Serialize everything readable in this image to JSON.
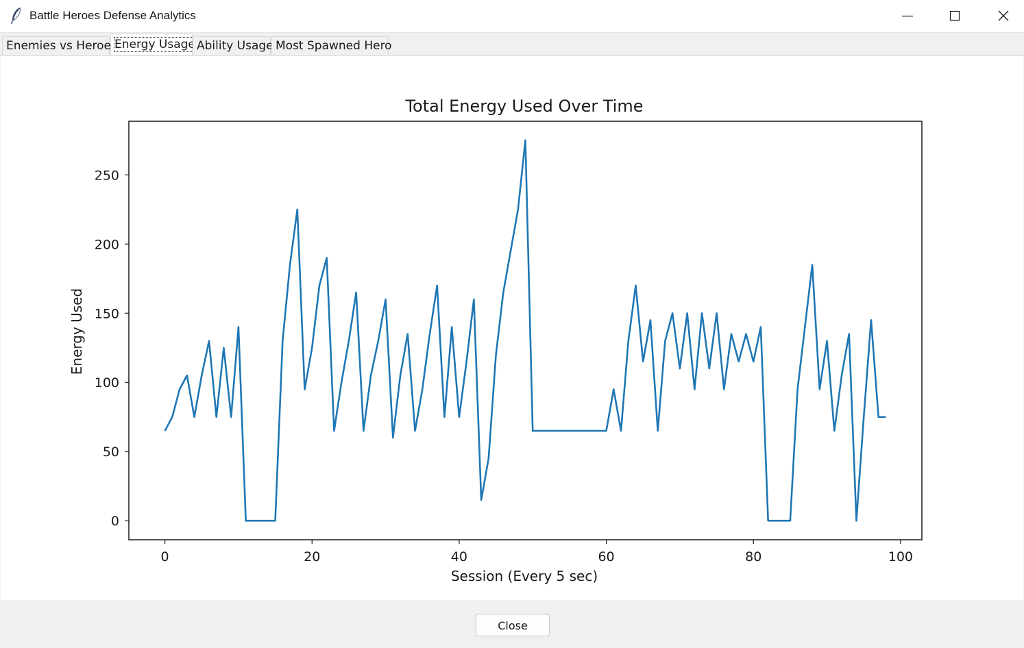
{
  "window": {
    "title": "Battle Heroes Defense Analytics",
    "icon": "feather-icon"
  },
  "tabs": [
    {
      "label": "Enemies vs Heroes",
      "active": false
    },
    {
      "label": "Energy Usage",
      "active": true
    },
    {
      "label": "Ability Usage",
      "active": false
    },
    {
      "label": "Most Spawned Hero",
      "active": false
    }
  ],
  "footer": {
    "close_label": "Close"
  },
  "chart_data": {
    "type": "line",
    "title": "Total Energy Used Over Time",
    "xlabel": "Session (Every 5 sec)",
    "ylabel": "Energy Used",
    "xlim": [
      -4.9,
      102.9
    ],
    "ylim": [
      -13.75,
      288.75
    ],
    "xticks": [
      0,
      20,
      40,
      60,
      80,
      100
    ],
    "yticks": [
      0,
      50,
      100,
      150,
      200,
      250
    ],
    "grid": false,
    "color": "#1f77b4",
    "x": [
      0,
      1,
      2,
      3,
      4,
      5,
      6,
      7,
      8,
      9,
      10,
      11,
      12,
      13,
      14,
      15,
      16,
      17,
      18,
      19,
      20,
      21,
      22,
      23,
      24,
      25,
      26,
      27,
      28,
      29,
      30,
      31,
      32,
      33,
      34,
      35,
      36,
      37,
      38,
      39,
      40,
      41,
      42,
      43,
      44,
      45,
      46,
      47,
      48,
      49,
      50,
      51,
      52,
      53,
      54,
      55,
      56,
      57,
      58,
      59,
      60,
      61,
      62,
      63,
      64,
      65,
      66,
      67,
      68,
      69,
      70,
      71,
      72,
      73,
      74,
      75,
      76,
      77,
      78,
      79,
      80,
      81,
      82,
      83,
      84,
      85,
      86,
      87,
      88,
      89,
      90,
      91,
      92,
      93,
      94,
      95,
      96,
      97,
      98
    ],
    "y": [
      65,
      75,
      95,
      105,
      75,
      105,
      130,
      75,
      125,
      75,
      140,
      0,
      0,
      0,
      0,
      0,
      130,
      185,
      225,
      95,
      125,
      170,
      190,
      65,
      100,
      130,
      165,
      65,
      105,
      130,
      160,
      60,
      105,
      135,
      65,
      95,
      135,
      170,
      75,
      140,
      75,
      115,
      160,
      15,
      45,
      120,
      165,
      195,
      225,
      275,
      65,
      65,
      65,
      65,
      65,
      65,
      65,
      65,
      65,
      65,
      65,
      95,
      65,
      130,
      170,
      115,
      145,
      65,
      130,
      150,
      110,
      150,
      95,
      150,
      110,
      150,
      95,
      135,
      115,
      135,
      115,
      140,
      0,
      0,
      0,
      0,
      95,
      140,
      185,
      95,
      130,
      65,
      105,
      135,
      0,
      75,
      145,
      75,
      75
    ]
  }
}
